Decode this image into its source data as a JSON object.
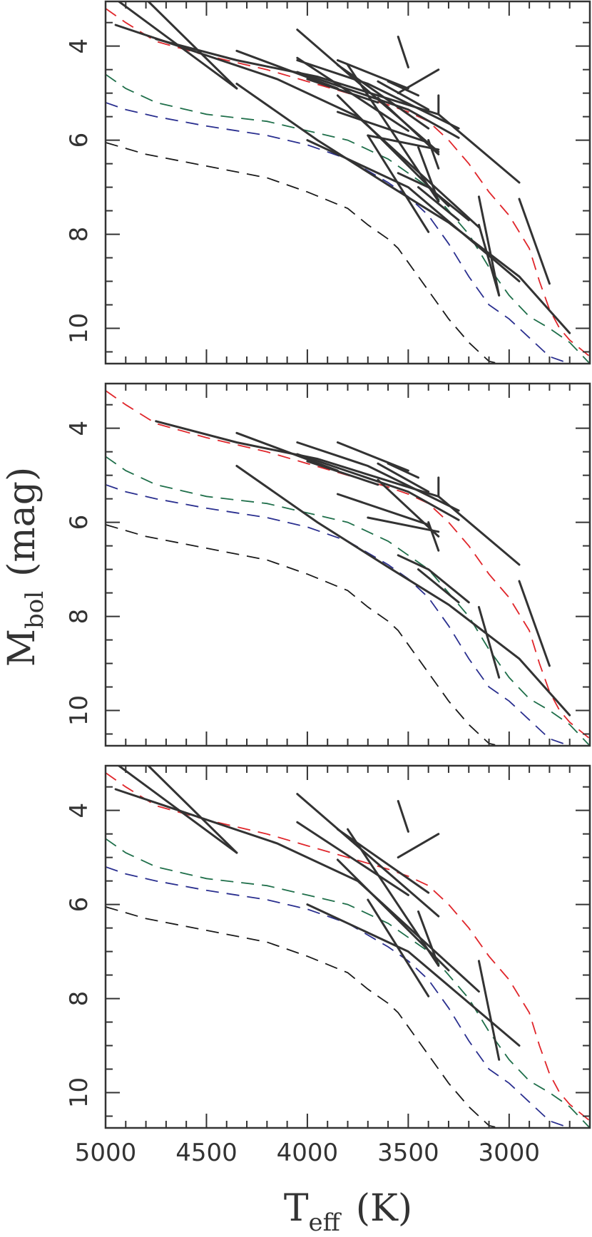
{
  "figure": {
    "ylabel": "M",
    "ylabel_sub": "bol",
    "ylabel_unit": "(mag)",
    "xlabel": "T",
    "xlabel_sub": "eff",
    "xlabel_unit": "(K)"
  },
  "chart_data": [
    {
      "type": "line",
      "panel": "top",
      "xlim": [
        5000,
        2600
      ],
      "ylim": [
        10.75,
        3.05
      ],
      "x_ticks": [
        5000,
        4500,
        4000,
        3500,
        3000
      ],
      "y_ticks": [
        4,
        6,
        8,
        10
      ],
      "x_tick_labels": [],
      "series_ref": "all_tracks"
    },
    {
      "type": "line",
      "panel": "middle",
      "xlim": [
        5000,
        2600
      ],
      "ylim": [
        10.75,
        3.05
      ],
      "x_ticks": [
        5000,
        4500,
        4000,
        3500,
        3000
      ],
      "y_ticks": [
        4,
        6,
        8,
        10
      ],
      "x_tick_labels": [],
      "series_ref": "middle_tracks"
    },
    {
      "type": "line",
      "panel": "bottom",
      "xlim": [
        5000,
        2600
      ],
      "ylim": [
        10.75,
        3.05
      ],
      "x_ticks": [
        5000,
        4500,
        4000,
        3500,
        3000
      ],
      "y_ticks": [
        4,
        6,
        8,
        10
      ],
      "x_tick_labels": [
        "5000",
        "4500",
        "4000",
        "3500",
        "3000"
      ],
      "series_ref": "bottom_tracks"
    }
  ],
  "models": [
    {
      "color": "#e0262b",
      "x": [
        5000,
        4900,
        4750,
        4500,
        4200,
        4000,
        3800,
        3600,
        3500,
        3400,
        3300,
        3200,
        3100,
        3000,
        2900,
        2850,
        2800,
        2750,
        2700,
        2600
      ],
      "y": [
        3.2,
        3.5,
        3.9,
        4.2,
        4.5,
        4.75,
        5.0,
        5.25,
        5.4,
        5.6,
        6.0,
        6.5,
        7.1,
        7.6,
        8.3,
        9.0,
        9.6,
        10.0,
        10.25,
        10.6
      ]
    },
    {
      "color": "#1f6f4a",
      "x": [
        5000,
        4900,
        4750,
        4500,
        4200,
        4000,
        3800,
        3600,
        3500,
        3400,
        3300,
        3200,
        3100,
        3000,
        2900,
        2800,
        2700,
        2600
      ],
      "y": [
        4.6,
        4.9,
        5.2,
        5.45,
        5.6,
        5.8,
        6.0,
        6.4,
        6.7,
        7.0,
        7.5,
        8.0,
        8.7,
        9.3,
        9.75,
        10.0,
        10.3,
        10.75
      ]
    },
    {
      "color": "#2a2f8f",
      "x": [
        5000,
        4900,
        4750,
        4500,
        4200,
        4000,
        3800,
        3600,
        3500,
        3400,
        3300,
        3200,
        3100,
        3000,
        2900,
        2800,
        2700
      ],
      "y": [
        5.2,
        5.35,
        5.5,
        5.7,
        5.9,
        6.1,
        6.4,
        6.9,
        7.2,
        7.6,
        8.2,
        8.9,
        9.5,
        9.8,
        10.2,
        10.6,
        10.75
      ]
    },
    {
      "color": "#1a1a1a",
      "x": [
        5000,
        4800,
        4500,
        4200,
        4000,
        3800,
        3700,
        3600,
        3550,
        3500,
        3400,
        3300,
        3200,
        3100,
        3050
      ],
      "y": [
        6.05,
        6.3,
        6.55,
        6.8,
        7.1,
        7.45,
        7.8,
        8.1,
        8.3,
        8.6,
        9.2,
        9.8,
        10.3,
        10.7,
        10.75
      ]
    }
  ],
  "tracks_middle": [
    [
      [
        4750,
        3.85
      ],
      [
        4350,
        4.3
      ],
      [
        3950,
        4.65
      ],
      [
        3350,
        5.45
      ],
      [
        2950,
        6.9
      ]
    ],
    [
      [
        4350,
        4.1
      ],
      [
        3850,
        4.9
      ]
    ],
    [
      [
        4050,
        4.3
      ],
      [
        3700,
        4.8
      ],
      [
        3250,
        5.75
      ]
    ],
    [
      [
        4050,
        4.55
      ],
      [
        3500,
        5.35
      ],
      [
        3250,
        5.95
      ]
    ],
    [
      [
        3850,
        4.3
      ],
      [
        3500,
        4.9
      ]
    ],
    [
      [
        3650,
        4.75
      ],
      [
        3400,
        5.35
      ]
    ],
    [
      [
        3600,
        4.75
      ],
      [
        3450,
        5.05
      ]
    ],
    [
      [
        3850,
        5.4
      ],
      [
        3400,
        6.05
      ]
    ],
    [
      [
        3700,
        5.9
      ],
      [
        3350,
        6.2
      ]
    ],
    [
      [
        3650,
        5.1
      ],
      [
        3350,
        6.3
      ]
    ],
    [
      [
        4000,
        4.7
      ],
      [
        3650,
        5.2
      ]
    ],
    [
      [
        3400,
        6.0
      ],
      [
        3350,
        6.6
      ]
    ],
    [
      [
        3550,
        6.7
      ],
      [
        3400,
        7.0
      ],
      [
        3200,
        7.7
      ]
    ],
    [
      [
        3450,
        7.0
      ],
      [
        3250,
        7.7
      ]
    ],
    [
      [
        3150,
        7.8
      ],
      [
        3050,
        9.3
      ]
    ],
    [
      [
        2950,
        7.25
      ],
      [
        2800,
        9.05
      ]
    ],
    [
      [
        4350,
        4.8
      ],
      [
        3950,
        6.0
      ],
      [
        3600,
        6.95
      ],
      [
        3300,
        7.75
      ],
      [
        2950,
        8.9
      ],
      [
        2700,
        10.1
      ]
    ],
    [
      [
        3350,
        5.05
      ],
      [
        3350,
        5.45
      ]
    ]
  ],
  "tracks_bottom": [
    [
      [
        4950,
        3.0
      ],
      [
        4350,
        4.9
      ]
    ],
    [
      [
        4800,
        3.0
      ],
      [
        4350,
        4.9
      ]
    ],
    [
      [
        4950,
        3.55
      ],
      [
        4150,
        4.7
      ],
      [
        3750,
        5.5
      ],
      [
        3150,
        7.85
      ]
    ],
    [
      [
        4050,
        3.65
      ],
      [
        3350,
        6.25
      ]
    ],
    [
      [
        4050,
        4.25
      ],
      [
        3500,
        5.8
      ]
    ],
    [
      [
        3850,
        4.4
      ],
      [
        3400,
        5.75
      ]
    ],
    [
      [
        3800,
        4.4
      ],
      [
        3350,
        7.3
      ]
    ],
    [
      [
        3850,
        5.05
      ],
      [
        3300,
        7.4
      ]
    ],
    [
      [
        3700,
        5.9
      ],
      [
        3400,
        7.95
      ]
    ],
    [
      [
        3450,
        6.15
      ],
      [
        3350,
        7.3
      ]
    ],
    [
      [
        3150,
        7.2
      ],
      [
        3050,
        9.3
      ]
    ],
    [
      [
        4000,
        6.0
      ],
      [
        3500,
        7.0
      ],
      [
        2950,
        9.0
      ]
    ],
    [
      [
        3550,
        3.8
      ],
      [
        3500,
        4.45
      ]
    ],
    [
      [
        3550,
        5.0
      ],
      [
        3350,
        4.5
      ]
    ]
  ]
}
